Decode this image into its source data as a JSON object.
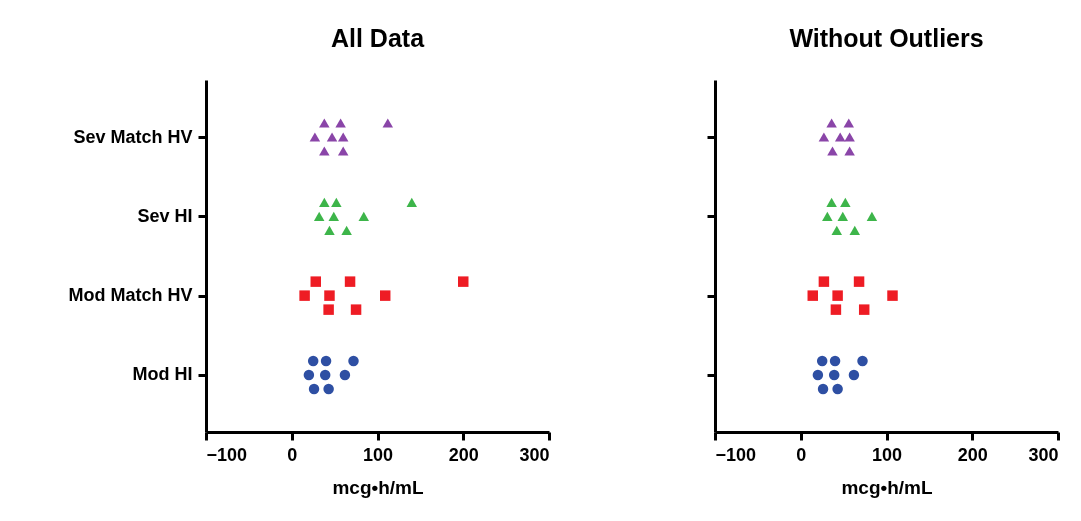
{
  "chart_data": [
    {
      "type": "scatter",
      "title": "All Data",
      "xlabel": "mcg•h/mL",
      "orientation": "horizontal",
      "categories": [
        "Sev Match HV",
        "Sev HI",
        "Mod Match HV",
        "Mod HI"
      ],
      "xlim": [
        -100,
        300
      ],
      "xticks": [
        -100,
        0,
        100,
        200,
        300
      ],
      "grid": false,
      "legend": false,
      "series": [
        {
          "color": "#8a45a8",
          "marker": "triangle",
          "x": [
            "Sev Match HV",
            "Sev Match HV",
            "Sev Match HV",
            "Sev Match HV",
            "Sev Match HV",
            "Sev Match HV",
            "Sev Match HV",
            "Sev Match HV"
          ],
          "values": [
            27,
            38,
            38,
            47,
            57,
            60,
            60,
            112
          ]
        },
        {
          "color": "#3db54a",
          "marker": "triangle",
          "x": [
            "Sev HI",
            "Sev HI",
            "Sev HI",
            "Sev HI",
            "Sev HI",
            "Sev HI",
            "Sev HI",
            "Sev HI"
          ],
          "values": [
            32,
            38,
            44,
            49,
            52,
            64,
            84,
            140
          ]
        },
        {
          "color": "#ee1c24",
          "marker": "square",
          "x": [
            "Mod Match HV",
            "Mod Match HV",
            "Mod Match HV",
            "Mod Match HV",
            "Mod Match HV",
            "Mod Match HV",
            "Mod Match HV",
            "Mod Match HV"
          ],
          "values": [
            15,
            28,
            43,
            44,
            68,
            75,
            109,
            200
          ]
        },
        {
          "color": "#2e4fa3",
          "marker": "circle",
          "x": [
            "Mod HI",
            "Mod HI",
            "Mod HI",
            "Mod HI",
            "Mod HI",
            "Mod HI",
            "Mod HI",
            "Mod HI"
          ],
          "values": [
            20,
            25,
            26,
            39,
            40,
            43,
            62,
            72
          ]
        }
      ]
    },
    {
      "type": "scatter",
      "title": "Without Outliers",
      "xlabel": "mcg•h/mL",
      "orientation": "horizontal",
      "categories": [
        "Sev Match HV",
        "Sev HI",
        "Mod Match HV",
        "Mod HI"
      ],
      "xlim": [
        -100,
        300
      ],
      "xticks": [
        -100,
        0,
        100,
        200,
        300
      ],
      "grid": false,
      "legend": false,
      "tick_labels": "x",
      "series": [
        {
          "color": "#8a45a8",
          "marker": "triangle",
          "x": [
            "Sev Match HV",
            "Sev Match HV",
            "Sev Match HV",
            "Sev Match HV",
            "Sev Match HV",
            "Sev Match HV",
            "Sev Match HV"
          ],
          "values": [
            27,
            36,
            37,
            46,
            56,
            57,
            57
          ]
        },
        {
          "color": "#3db54a",
          "marker": "triangle",
          "x": [
            "Sev HI",
            "Sev HI",
            "Sev HI",
            "Sev HI",
            "Sev HI",
            "Sev HI",
            "Sev HI"
          ],
          "values": [
            31,
            36,
            42,
            49,
            52,
            63,
            83
          ]
        },
        {
          "color": "#ee1c24",
          "marker": "square",
          "x": [
            "Mod Match HV",
            "Mod Match HV",
            "Mod Match HV",
            "Mod Match HV",
            "Mod Match HV",
            "Mod Match HV",
            "Mod Match HV"
          ],
          "values": [
            14,
            27,
            41,
            43,
            68,
            74,
            107
          ]
        },
        {
          "color": "#2e4fa3",
          "marker": "circle",
          "x": [
            "Mod HI",
            "Mod HI",
            "Mod HI",
            "Mod HI",
            "Mod HI",
            "Mod HI",
            "Mod HI",
            "Mod HI"
          ],
          "values": [
            20,
            25,
            26,
            39,
            40,
            43,
            62,
            72
          ]
        }
      ]
    }
  ]
}
